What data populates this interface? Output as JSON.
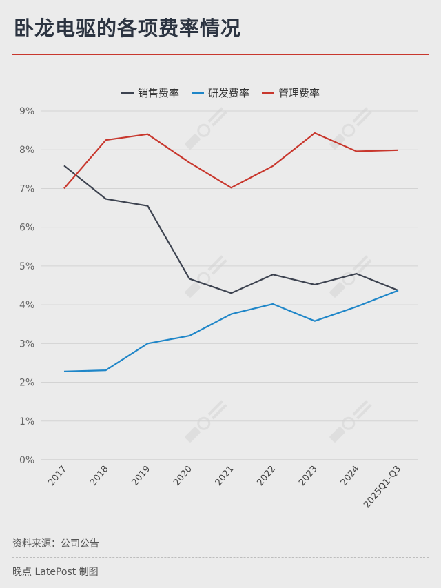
{
  "header": {
    "title": "卧龙电驱的各项费率情况"
  },
  "footer": {
    "source": "资料来源：公司公告",
    "credit": "晚点 LatePost 制图"
  },
  "watermark": "晚点 LATEPOST",
  "chart_data": {
    "type": "line",
    "title": "卧龙电驱的各项费率情况",
    "xlabel": "",
    "ylabel": "",
    "categories": [
      "2017",
      "2018",
      "2019",
      "2020",
      "2021",
      "2022",
      "2023",
      "2024",
      "2025Q1-Q3"
    ],
    "ylim": [
      0,
      9
    ],
    "yticks": [
      "0%",
      "1%",
      "2%",
      "3%",
      "4%",
      "5%",
      "6%",
      "7%",
      "8%",
      "9%"
    ],
    "grid": true,
    "legend_position": "top-center",
    "series": [
      {
        "name": "销售费率",
        "color": "#3d4350",
        "values": [
          7.59,
          6.73,
          6.55,
          4.67,
          4.3,
          4.78,
          4.52,
          4.8,
          4.37
        ]
      },
      {
        "name": "研发费率",
        "color": "#1f86c8",
        "values": [
          2.28,
          2.31,
          3.0,
          3.2,
          3.76,
          4.02,
          3.58,
          3.95,
          4.37
        ]
      },
      {
        "name": "管理费率",
        "color": "#c8372d",
        "values": [
          7.0,
          8.25,
          8.4,
          7.67,
          7.02,
          7.58,
          8.43,
          7.96,
          7.99
        ]
      }
    ]
  }
}
